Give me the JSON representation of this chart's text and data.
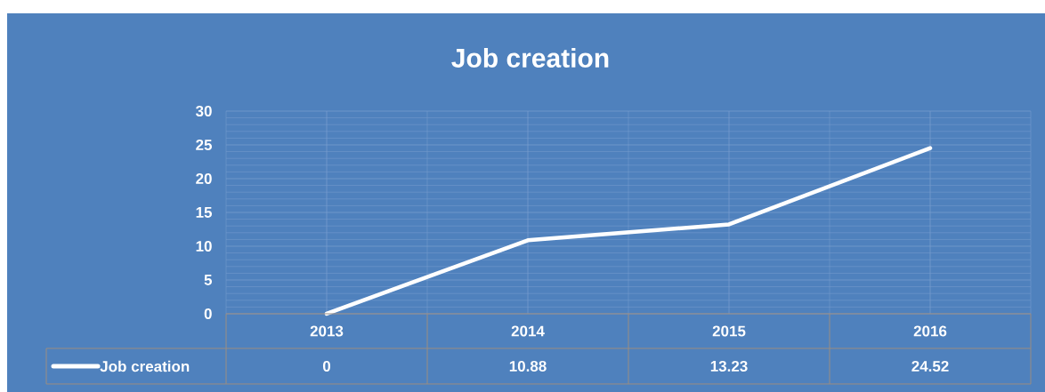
{
  "chart_data": {
    "type": "line",
    "title": "Job creation",
    "categories": [
      "2013",
      "2014",
      "2015",
      "2016"
    ],
    "series": [
      {
        "name": "Job creation",
        "color": "#ffffff",
        "values": [
          0,
          10.88,
          13.23,
          24.52
        ]
      }
    ],
    "ylim": [
      0,
      30
    ],
    "yticks": [
      0,
      5,
      10,
      15,
      20,
      25,
      30
    ],
    "grid": true,
    "legend": "bottom",
    "data_labels": true,
    "marker": "none",
    "line_style": "solid"
  }
}
